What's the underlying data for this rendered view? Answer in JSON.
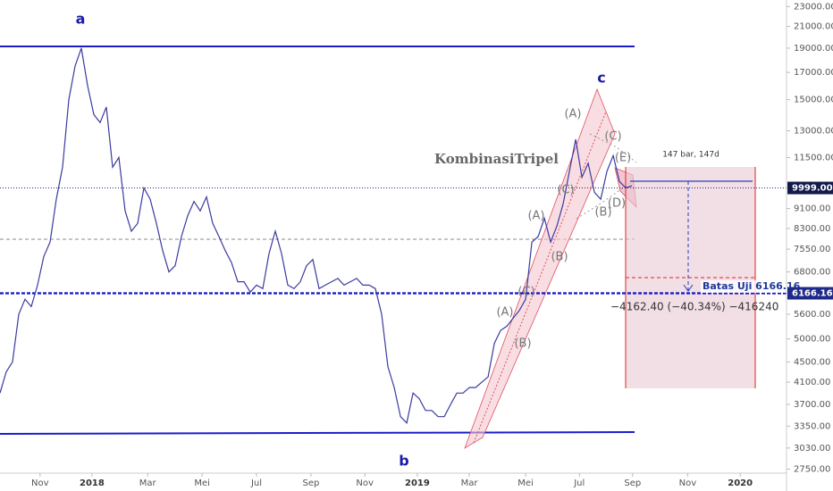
{
  "chart_data": {
    "type": "line",
    "log_scale": true,
    "series": [
      {
        "color": "#3a3aa0",
        "values": [
          3900,
          4300,
          4500,
          5600,
          6000,
          5800,
          6400,
          7300,
          7800,
          9500,
          11000,
          15000,
          17500,
          19000,
          16000,
          14000,
          13500,
          14500,
          11000,
          11500,
          9000,
          8200,
          8500,
          10000,
          9500,
          8500,
          7500,
          6800,
          7000,
          8000,
          8800,
          9400,
          9000,
          9600,
          8500,
          8000,
          7500,
          7100,
          6500,
          6500,
          6200,
          6400,
          6300,
          7400,
          8200,
          7400,
          6400,
          6300,
          6500,
          7000,
          7200,
          6300,
          6400,
          6500,
          6600,
          6400,
          6500,
          6600,
          6400,
          6400,
          6300,
          5600,
          4400,
          4000,
          3500,
          3400,
          3900,
          3800,
          3600,
          3600,
          3500,
          3500,
          3700,
          3900,
          3900,
          4000,
          4000,
          4100,
          4200,
          4900,
          5200,
          5300,
          5500,
          5700,
          6000,
          7800,
          8000,
          8700,
          7800,
          8400,
          9300,
          10800,
          12500,
          10500,
          11200,
          9800,
          9500,
          10800,
          11600,
          10300,
          10000,
          10100
        ]
      }
    ],
    "xlim": [
      0,
      125.7
    ],
    "xticks": [
      {
        "value": 6.4,
        "label": "Nov"
      },
      {
        "value": 14.7,
        "label": "2018"
      },
      {
        "value": 23.6,
        "label": "Mar"
      },
      {
        "value": 32.3,
        "label": "Mei"
      },
      {
        "value": 41,
        "label": "Jul"
      },
      {
        "value": 49.7,
        "label": "Sep"
      },
      {
        "value": 58.3,
        "label": "Nov"
      },
      {
        "value": 66.7,
        "label": "2019"
      },
      {
        "value": 75,
        "label": "Mar"
      },
      {
        "value": 84,
        "label": "Mei"
      },
      {
        "value": 92.6,
        "label": "Jul"
      },
      {
        "value": 101.1,
        "label": "Sep"
      },
      {
        "value": 109.9,
        "label": "Nov"
      },
      {
        "value": 118.3,
        "label": "2020"
      }
    ],
    "ylim": [
      2700,
      23700
    ],
    "yticks": [
      {
        "value": 23000,
        "label": "23000.00"
      },
      {
        "value": 21000,
        "label": "21000.00"
      },
      {
        "value": 19000,
        "label": "19000.00"
      },
      {
        "value": 17000,
        "label": "17000.00"
      },
      {
        "value": 15000,
        "label": "15000.00"
      },
      {
        "value": 13000,
        "label": "13000.00"
      },
      {
        "value": 11500,
        "label": "11500.00"
      },
      {
        "value": 9100,
        "label": "9100.00"
      },
      {
        "value": 8300,
        "label": "8300.00"
      },
      {
        "value": 7550,
        "label": "7550.00"
      },
      {
        "value": 6800,
        "label": "6800.00"
      },
      {
        "value": 5600,
        "label": "5600.00"
      },
      {
        "value": 5000,
        "label": "5000.00"
      },
      {
        "value": 4500,
        "label": "4500.00"
      },
      {
        "value": 4100,
        "label": "4100.00"
      },
      {
        "value": 3700,
        "label": "3700.00"
      },
      {
        "value": 3350,
        "label": "3350.00"
      },
      {
        "value": 3030,
        "label": "3030.00"
      },
      {
        "value": 2750,
        "label": "2750.00"
      }
    ],
    "levels": [
      {
        "value": 9999,
        "label": "9999.00"
      },
      {
        "value": 6166.16,
        "label": "6166.16"
      }
    ],
    "annotations": [
      "a",
      "b",
      "c",
      "KombinasiTripel",
      "(A)",
      "(C)",
      "(E)",
      "(C)",
      "(D)",
      "(B)",
      "(A)",
      "(B)",
      "(A)",
      "(C)",
      "(B)",
      "147 bar, 147d",
      "Batas Uji 6166.16",
      "−4162.40 (−40.34%) −416240"
    ]
  }
}
